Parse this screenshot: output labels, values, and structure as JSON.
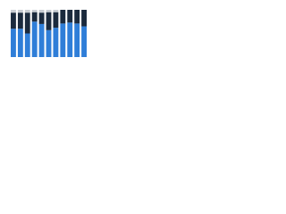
{
  "chart_data": {
    "type": "stacked-bar",
    "categories": [
      null,
      null,
      null,
      null,
      null,
      null,
      null,
      null,
      null,
      null,
      null
    ],
    "series": [
      {
        "color": "#2f7ed8",
        "values": [
          60,
          60,
          50,
          75,
          70,
          57,
          62,
          71,
          73,
          71,
          65
        ]
      },
      {
        "color": "#1b2a3d",
        "values": [
          34,
          34,
          44,
          20,
          24,
          38,
          33,
          29,
          27,
          29,
          35
        ]
      },
      {
        "color": "#c8ccd2",
        "values": [
          6,
          6,
          6,
          5,
          6,
          5,
          5,
          0,
          0,
          0,
          0
        ]
      }
    ],
    "ylim": [
      0,
      100
    ],
    "grid": false
  }
}
